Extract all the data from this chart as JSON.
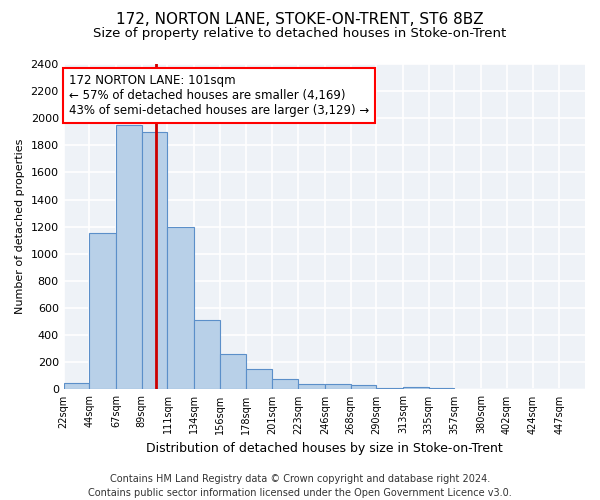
{
  "title": "172, NORTON LANE, STOKE-ON-TRENT, ST6 8BZ",
  "subtitle": "Size of property relative to detached houses in Stoke-on-Trent",
  "xlabel": "Distribution of detached houses by size in Stoke-on-Trent",
  "ylabel": "Number of detached properties",
  "footer_line1": "Contains HM Land Registry data © Crown copyright and database right 2024.",
  "footer_line2": "Contains public sector information licensed under the Open Government Licence v3.0.",
  "annotation_line1": "172 NORTON LANE: 101sqm",
  "annotation_line2": "← 57% of detached houses are smaller (4,169)",
  "annotation_line3": "43% of semi-detached houses are larger (3,129) →",
  "bar_color": "#b8d0e8",
  "bar_edge_color": "#5b8fc9",
  "vline_color": "#cc0000",
  "vline_x": 101,
  "bins": [
    22,
    44,
    67,
    89,
    111,
    134,
    156,
    178,
    201,
    223,
    246,
    268,
    290,
    313,
    335,
    357,
    380,
    402,
    424,
    447,
    469
  ],
  "values": [
    50,
    1150,
    1950,
    1900,
    1200,
    510,
    260,
    150,
    75,
    40,
    40,
    30,
    10,
    15,
    10,
    5,
    5,
    5,
    5,
    5
  ],
  "ylim": [
    0,
    2400
  ],
  "yticks": [
    0,
    200,
    400,
    600,
    800,
    1000,
    1200,
    1400,
    1600,
    1800,
    2000,
    2200,
    2400
  ],
  "bg_color": "#eef2f7",
  "grid_color": "#ffffff",
  "title_fontsize": 11,
  "subtitle_fontsize": 9.5,
  "xlabel_fontsize": 9,
  "ylabel_fontsize": 8,
  "annotation_fontsize": 8.5,
  "footer_fontsize": 7
}
